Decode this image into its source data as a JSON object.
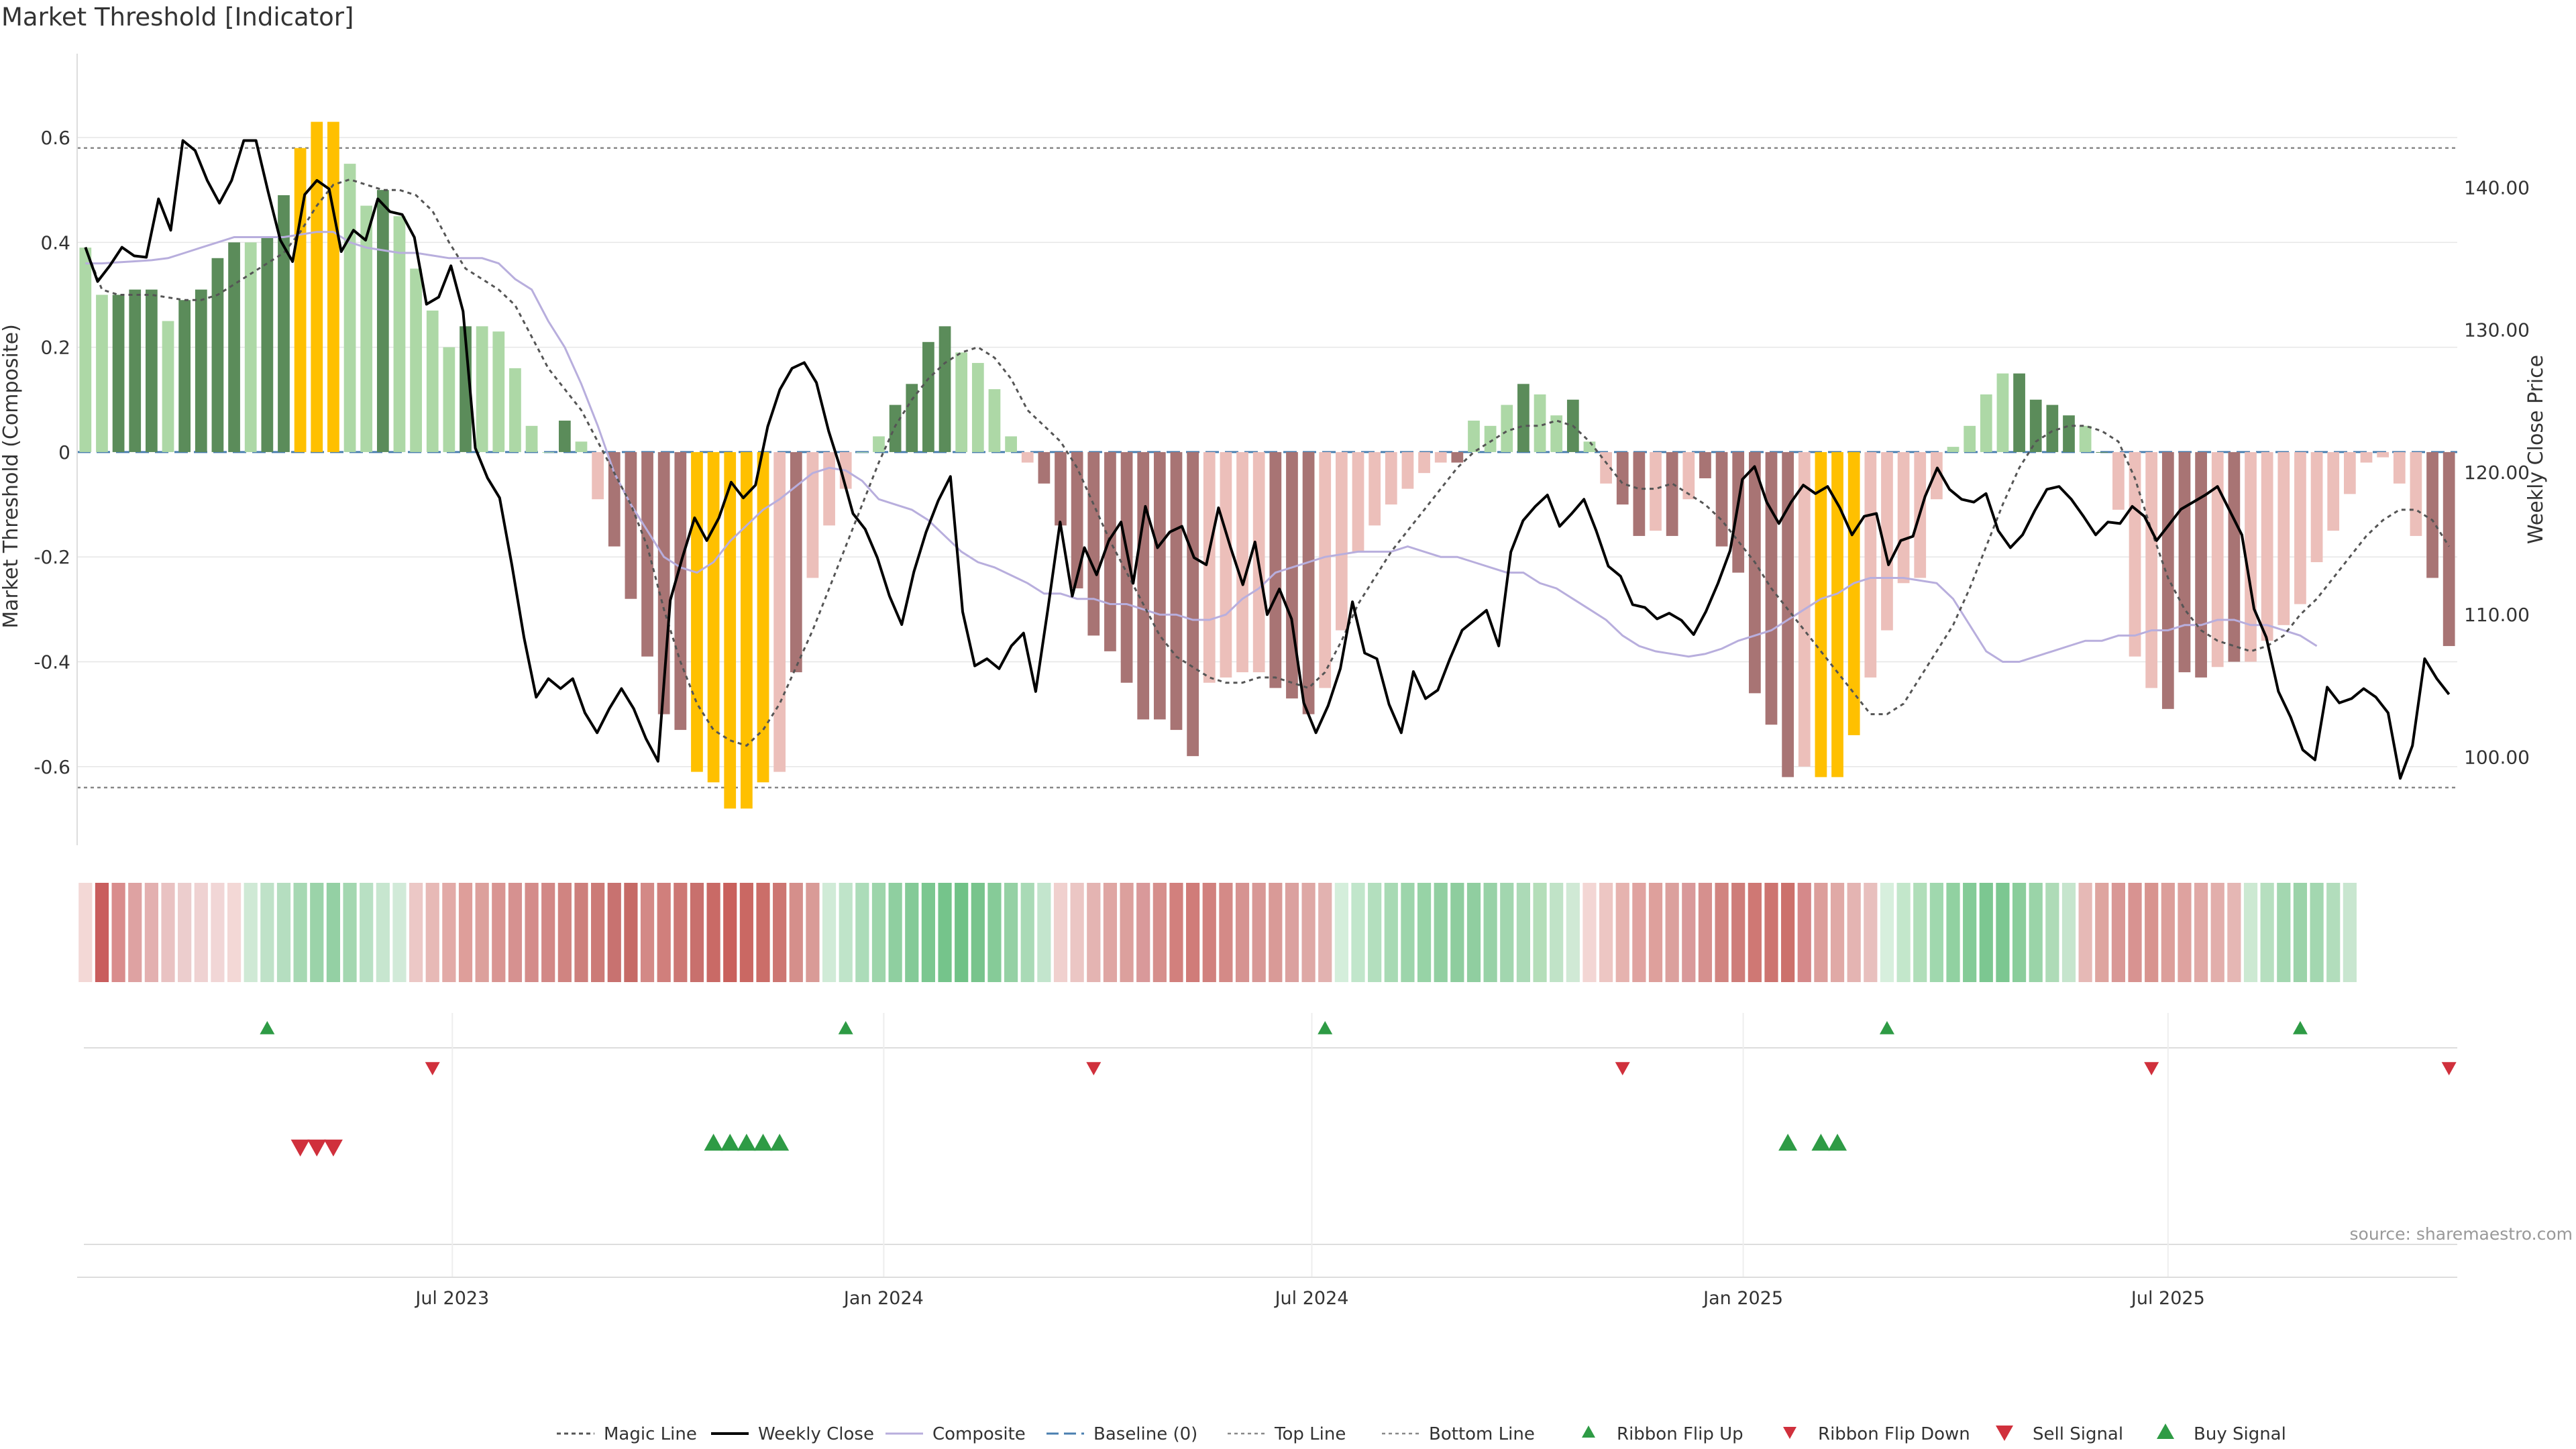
{
  "title": "Market Threshold [Indicator]",
  "source_note": "source: sharemaestro.com",
  "colors": {
    "strong_pos": "#5b8c5a",
    "weak_pos": "#add8a6",
    "strong_neg": "#a87474",
    "weak_neg": "#ecbfba",
    "extreme": "#ffc000",
    "price_line": "#000000",
    "composite": "#b8aedd",
    "magic": "#555555",
    "baseline": "#4a7fb0",
    "threshold": "#888888",
    "buy": "#2e9b45",
    "sell": "#d0303c",
    "grid": "#e6e6e6"
  },
  "chart_data": {
    "type": "bar",
    "title": "Market Threshold [Indicator]",
    "ylabel": "Market Threshold (Composite)",
    "y2label": "Weekly Close Price",
    "ylim": [
      -0.75,
      0.76
    ],
    "y2lim": [
      93.8,
      149.4
    ],
    "yticks": [
      {
        "v": 0.6,
        "label": "0.6"
      },
      {
        "v": 0.4,
        "label": "0.4"
      },
      {
        "v": 0.2,
        "label": "0.2"
      },
      {
        "v": 0,
        "label": "0"
      },
      {
        "v": -0.2,
        "label": "-0.2"
      },
      {
        "v": -0.4,
        "label": "-0.4"
      },
      {
        "v": -0.6,
        "label": "-0.6"
      }
    ],
    "y2ticks": [
      {
        "v": 140,
        "label": "140.00"
      },
      {
        "v": 130,
        "label": "130.00"
      },
      {
        "v": 120,
        "label": "120.00"
      },
      {
        "v": 110,
        "label": "110.00"
      },
      {
        "v": 100,
        "label": "100.00"
      }
    ],
    "xticks": [
      {
        "i": 22.2,
        "label": "Jul 2023"
      },
      {
        "i": 48.3,
        "label": "Jan 2024"
      },
      {
        "i": 74.2,
        "label": "Jul 2024"
      },
      {
        "i": 100.3,
        "label": "Jan 2025"
      },
      {
        "i": 126.0,
        "label": "Jul 2025"
      }
    ],
    "top_line": 0.58,
    "bottom_line": -0.64,
    "baseline": 0,
    "bars": [
      0.39,
      0.3,
      0.3,
      0.31,
      0.31,
      0.25,
      0.29,
      0.31,
      0.37,
      0.4,
      0.4,
      0.41,
      0.49,
      0.58,
      0.63,
      0.63,
      0.55,
      0.47,
      0.5,
      0.45,
      0.35,
      0.27,
      0.2,
      0.24,
      0.24,
      0.23,
      0.16,
      0.05,
      0.0,
      0.06,
      0.02,
      -0.09,
      -0.18,
      -0.28,
      -0.39,
      -0.5,
      -0.53,
      -0.61,
      -0.63,
      -0.68,
      -0.68,
      -0.63,
      -0.61,
      -0.42,
      -0.24,
      -0.14,
      -0.07,
      0.0,
      0.03,
      0.09,
      0.13,
      0.21,
      0.24,
      0.19,
      0.17,
      0.12,
      0.03,
      -0.02,
      -0.06,
      -0.14,
      -0.26,
      -0.35,
      -0.38,
      -0.44,
      -0.51,
      -0.51,
      -0.53,
      -0.58,
      -0.44,
      -0.43,
      -0.42,
      -0.42,
      -0.45,
      -0.47,
      -0.5,
      -0.45,
      -0.34,
      -0.19,
      -0.14,
      -0.1,
      -0.07,
      -0.04,
      -0.02,
      -0.02,
      0.06,
      0.05,
      0.09,
      0.13,
      0.11,
      0.07,
      0.1,
      0.02,
      -0.06,
      -0.1,
      -0.16,
      -0.15,
      -0.16,
      -0.09,
      -0.05,
      -0.18,
      -0.23,
      -0.46,
      -0.52,
      -0.62,
      -0.6,
      -0.62,
      -0.62,
      -0.54,
      -0.43,
      -0.34,
      -0.25,
      -0.24,
      -0.09,
      0.01,
      0.05,
      0.11,
      0.15,
      0.15,
      0.1,
      0.09,
      0.07,
      0.05,
      0.0,
      -0.11,
      -0.39,
      -0.45,
      -0.49,
      -0.42,
      -0.43,
      -0.41,
      -0.4,
      -0.4,
      -0.36,
      -0.33,
      -0.29,
      -0.21,
      -0.15,
      -0.08,
      -0.02,
      -0.01,
      -0.06,
      -0.16,
      -0.24,
      -0.37
    ],
    "bar_class": [
      "W",
      "W",
      "S",
      "S",
      "S",
      "W",
      "S",
      "S",
      "S",
      "S",
      "W",
      "S",
      "S",
      "E",
      "E",
      "E",
      "W",
      "W",
      "S",
      "W",
      "W",
      "W",
      "W",
      "S",
      "W",
      "W",
      "W",
      "W",
      "W",
      "S",
      "W",
      "W",
      "N",
      "N",
      "N",
      "N",
      "N",
      "E",
      "E",
      "E",
      "E",
      "E",
      "W",
      "N",
      "W",
      "W",
      "W",
      "W",
      "W",
      "S",
      "S",
      "S",
      "S",
      "W",
      "W",
      "W",
      "W",
      "W",
      "N",
      "N",
      "N",
      "N",
      "N",
      "N",
      "N",
      "N",
      "N",
      "N",
      "W",
      "W",
      "W",
      "W",
      "N",
      "N",
      "N",
      "W",
      "W",
      "W",
      "W",
      "W",
      "W",
      "W",
      "W",
      "N",
      "W",
      "W",
      "W",
      "S",
      "W",
      "W",
      "S",
      "W",
      "W",
      "N",
      "N",
      "W",
      "N",
      "W",
      "N",
      "N",
      "N",
      "N",
      "N",
      "N",
      "W",
      "E",
      "E",
      "E",
      "W",
      "W",
      "W",
      "W",
      "W",
      "W",
      "W",
      "W",
      "W",
      "S",
      "S",
      "S",
      "S",
      "W",
      "S",
      "W",
      "W",
      "W",
      "N",
      "N",
      "N",
      "W",
      "N",
      "W",
      "W",
      "W",
      "W",
      "W",
      "W",
      "W",
      "W",
      "W",
      "W",
      "W",
      "N",
      "N",
      "N"
    ],
    "price": [
      135.8,
      133.4,
      134.5,
      135.8,
      135.2,
      135.1,
      139.2,
      137.0,
      143.3,
      142.6,
      140.5,
      138.9,
      140.5,
      143.3,
      143.3,
      139.7,
      136.3,
      134.8,
      139.5,
      140.5,
      139.9,
      135.5,
      137.0,
      136.3,
      139.2,
      138.3,
      138.1,
      136.5,
      131.8,
      132.3,
      134.5,
      131.3,
      121.7,
      119.6,
      118.2,
      113.5,
      108.4,
      104.2,
      105.5,
      104.8,
      105.5,
      103.1,
      101.7,
      103.4,
      104.8,
      103.4,
      101.3,
      99.7,
      111.0,
      114.0,
      116.8,
      115.2,
      116.8,
      119.3,
      118.2,
      119.1,
      123.2,
      125.8,
      127.3,
      127.7,
      126.3,
      122.9,
      120.2,
      117.1,
      116.0,
      114.0,
      111.3,
      109.3,
      113.0,
      115.8,
      118.0,
      119.7,
      110.2,
      106.4,
      106.9,
      106.2,
      107.8,
      108.7,
      104.6,
      110.4,
      116.5,
      111.3,
      114.7,
      112.8,
      115.2,
      116.5,
      112.2,
      117.6,
      114.7,
      115.8,
      116.2,
      114.0,
      113.5,
      117.5,
      114.7,
      112.1,
      115.1,
      110.0,
      111.8,
      109.7,
      103.8,
      101.7,
      103.6,
      106.2,
      110.9,
      107.3,
      106.9,
      103.7,
      101.7,
      106.0,
      104.1,
      104.7,
      106.9,
      108.9,
      109.6,
      110.3,
      107.8,
      114.4,
      116.6,
      117.6,
      118.4,
      116.2,
      117.1,
      118.1,
      115.9,
      113.4,
      112.7,
      110.7,
      110.5,
      109.7,
      110.1,
      109.6,
      108.6,
      110.2,
      112.2,
      114.5,
      119.5,
      120.4,
      117.9,
      116.4,
      117.9,
      119.1,
      118.5,
      119.0,
      117.5,
      115.6,
      116.9,
      117.1,
      113.5,
      115.2,
      115.5,
      118.3,
      120.3,
      118.8,
      118.1,
      117.9,
      118.5,
      115.9,
      114.7,
      115.6,
      117.3,
      118.8,
      119.0,
      118.1,
      116.9,
      115.6,
      116.5,
      116.4,
      117.6,
      116.9,
      115.2,
      116.3,
      117.4,
      117.9,
      118.4,
      119.0,
      117.3,
      115.6,
      110.4,
      108.4,
      104.6,
      102.8,
      100.5,
      99.8,
      104.9,
      103.8,
      104.1,
      104.8,
      104.2,
      103.1,
      98.5,
      100.8,
      106.9,
      105.5,
      104.4
    ],
    "composite": [
      0.36,
      0.36,
      0.362,
      0.364,
      0.366,
      0.37,
      0.38,
      0.39,
      0.4,
      0.41,
      0.41,
      0.41,
      0.41,
      0.415,
      0.42,
      0.42,
      0.4,
      0.39,
      0.385,
      0.38,
      0.38,
      0.375,
      0.37,
      0.37,
      0.37,
      0.36,
      0.33,
      0.31,
      0.25,
      0.2,
      0.13,
      0.05,
      -0.04,
      -0.1,
      -0.15,
      -0.2,
      -0.22,
      -0.23,
      -0.21,
      -0.17,
      -0.14,
      -0.11,
      -0.09,
      -0.065,
      -0.04,
      -0.03,
      -0.035,
      -0.055,
      -0.09,
      -0.1,
      -0.11,
      -0.13,
      -0.16,
      -0.19,
      -0.21,
      -0.22,
      -0.235,
      -0.25,
      -0.27,
      -0.27,
      -0.28,
      -0.28,
      -0.29,
      -0.29,
      -0.3,
      -0.31,
      -0.31,
      -0.32,
      -0.32,
      -0.31,
      -0.28,
      -0.26,
      -0.23,
      -0.22,
      -0.21,
      -0.2,
      -0.195,
      -0.19,
      -0.19,
      -0.19,
      -0.18,
      -0.19,
      -0.2,
      -0.2,
      -0.21,
      -0.22,
      -0.23,
      -0.23,
      -0.25,
      -0.26,
      -0.28,
      -0.3,
      -0.32,
      -0.35,
      -0.37,
      -0.38,
      -0.385,
      -0.39,
      -0.385,
      -0.375,
      -0.36,
      -0.35,
      -0.34,
      -0.32,
      -0.3,
      -0.28,
      -0.27,
      -0.25,
      -0.24,
      -0.24,
      -0.24,
      -0.245,
      -0.25,
      -0.28,
      -0.33,
      -0.38,
      -0.4,
      -0.4,
      -0.39,
      -0.38,
      -0.37,
      -0.36,
      -0.36,
      -0.35,
      -0.35,
      -0.34,
      -0.34,
      -0.33,
      -0.33,
      -0.32,
      -0.32,
      -0.33,
      -0.33,
      -0.34,
      -0.35,
      -0.37
    ],
    "magic": [
      0.39,
      0.31,
      0.3,
      0.3,
      0.3,
      0.295,
      0.29,
      0.29,
      0.3,
      0.32,
      0.34,
      0.36,
      0.38,
      0.42,
      0.47,
      0.51,
      0.52,
      0.51,
      0.5,
      0.5,
      0.49,
      0.46,
      0.4,
      0.35,
      0.33,
      0.31,
      0.28,
      0.22,
      0.16,
      0.12,
      0.08,
      0.02,
      -0.04,
      -0.1,
      -0.18,
      -0.3,
      -0.4,
      -0.48,
      -0.53,
      -0.55,
      -0.56,
      -0.53,
      -0.48,
      -0.41,
      -0.34,
      -0.26,
      -0.18,
      -0.1,
      -0.02,
      0.05,
      0.1,
      0.14,
      0.17,
      0.19,
      0.2,
      0.18,
      0.14,
      0.08,
      0.05,
      0.02,
      -0.03,
      -0.1,
      -0.17,
      -0.23,
      -0.29,
      -0.35,
      -0.39,
      -0.41,
      -0.43,
      -0.44,
      -0.44,
      -0.43,
      -0.43,
      -0.44,
      -0.45,
      -0.42,
      -0.36,
      -0.29,
      -0.24,
      -0.19,
      -0.15,
      -0.11,
      -0.07,
      -0.03,
      0.0,
      0.02,
      0.04,
      0.05,
      0.05,
      0.06,
      0.05,
      0.02,
      -0.02,
      -0.06,
      -0.07,
      -0.07,
      -0.06,
      -0.08,
      -0.1,
      -0.13,
      -0.17,
      -0.21,
      -0.26,
      -0.3,
      -0.34,
      -0.38,
      -0.42,
      -0.46,
      -0.5,
      -0.5,
      -0.48,
      -0.43,
      -0.38,
      -0.33,
      -0.26,
      -0.18,
      -0.1,
      -0.03,
      0.02,
      0.04,
      0.05,
      0.05,
      0.04,
      0.02,
      -0.05,
      -0.15,
      -0.24,
      -0.3,
      -0.34,
      -0.36,
      -0.37,
      -0.38,
      -0.37,
      -0.35,
      -0.31,
      -0.28,
      -0.24,
      -0.2,
      -0.16,
      -0.13,
      -0.11,
      -0.11,
      -0.13,
      -0.18
    ],
    "ribbon": [
      "#f3d8d6",
      "#c95e5e",
      "#d98c8c",
      "#dea2a2",
      "#e3b0b0",
      "#e9c2c2",
      "#eccdcd",
      "#efd2d2",
      "#f1d6d6",
      "#f3d8d6",
      "#cfe9d5",
      "#bfe2c8",
      "#b5dec0",
      "#a6d8b3",
      "#9bd3a9",
      "#94d0a4",
      "#a3d7b0",
      "#b8e0c3",
      "#c7e6cf",
      "#d1ead8",
      "#ecc8c6",
      "#e7b9b6",
      "#e2aaa7",
      "#de9e9a",
      "#dca09c",
      "#d99592",
      "#d69190",
      "#d48c8a",
      "#d28886",
      "#d08481",
      "#cd7f7c",
      "#cc7b77",
      "#c87270",
      "#c66a66",
      "#d38986",
      "#d07f7c",
      "#cd7875",
      "#c8706d",
      "#c96a66",
      "#c9605c",
      "#ca6863",
      "#cb6e69",
      "#cd7672",
      "#d58f8b",
      "#d99b97",
      "#d0ebd7",
      "#bfe4c9",
      "#acdcb9",
      "#9dd5ab",
      "#8fcfa0",
      "#84ca97",
      "#7bc790",
      "#75c48b",
      "#70c287",
      "#78c48c",
      "#86cb98",
      "#95d1a4",
      "#a9dab6",
      "#c3e5cd",
      "#f0d0ce",
      "#ebc6c4",
      "#e4b4b2",
      "#dfa6a3",
      "#dca09d",
      "#d9999a",
      "#d68f8c",
      "#d2807d",
      "#d07c79",
      "#d1817e",
      "#d48a87",
      "#d69391",
      "#d89896",
      "#d99a97",
      "#dba19f",
      "#dea8a5",
      "#e2b2b0",
      "#d4eedb",
      "#c1e6cb",
      "#b3dfbe",
      "#a8dab4",
      "#9dd5ab",
      "#97d3a6",
      "#91cfa1",
      "#8ecd9e",
      "#90cea0",
      "#98d2a7",
      "#a2d6af",
      "#acdab7",
      "#b4deb9",
      "#c0e3c7",
      "#d0e9d5",
      "#f3d6d4",
      "#edc6c3",
      "#e6b3af",
      "#e0a3a0",
      "#dea09c",
      "#dba09d",
      "#d9999a",
      "#d6908e",
      "#d18480",
      "#ce7d79",
      "#cf7874",
      "#cd7470",
      "#cc716c",
      "#d5898a",
      "#dc9e9b",
      "#e0a9a6",
      "#e4b4b2",
      "#e8bfbd",
      "#d7efdd",
      "#c3e7cb",
      "#b0deb9",
      "#a0d8ae",
      "#91d1a1",
      "#84cb97",
      "#7cc791",
      "#7cc791",
      "#8acd9b",
      "#9ad4a8",
      "#aedbb7",
      "#c6e5cd",
      "#e6b9b6",
      "#dea49f",
      "#d99896",
      "#d89391",
      "#d8948f",
      "#dc9e9a",
      "#dea29f",
      "#e0a8a5",
      "#e2aeab",
      "#e5b7b4",
      "#cce9d2",
      "#b6dfbf",
      "#a3d7b0",
      "#9bd3a9",
      "#a3d7b0",
      "#b2ddbc",
      "#c8e6cf"
    ],
    "ribbon_flip_up": [
      11,
      46,
      75,
      109,
      134
    ],
    "ribbon_flip_down": [
      21,
      61,
      93,
      125,
      143
    ],
    "sell_signal": [
      13,
      14,
      15
    ],
    "buy_signal": [
      38,
      39,
      40,
      41,
      42,
      103,
      105,
      106
    ],
    "legend": [
      {
        "key": "magic",
        "label": "Magic Line"
      },
      {
        "key": "price",
        "label": "Weekly Close"
      },
      {
        "key": "composite",
        "label": "Composite"
      },
      {
        "key": "baseline",
        "label": "Baseline (0)"
      },
      {
        "key": "top",
        "label": "Top Line"
      },
      {
        "key": "bottom",
        "label": "Bottom Line"
      },
      {
        "key": "flip_up",
        "label": "Ribbon Flip Up"
      },
      {
        "key": "flip_down",
        "label": "Ribbon Flip Down"
      },
      {
        "key": "sell",
        "label": "Sell Signal"
      },
      {
        "key": "buy",
        "label": "Buy Signal"
      }
    ]
  }
}
